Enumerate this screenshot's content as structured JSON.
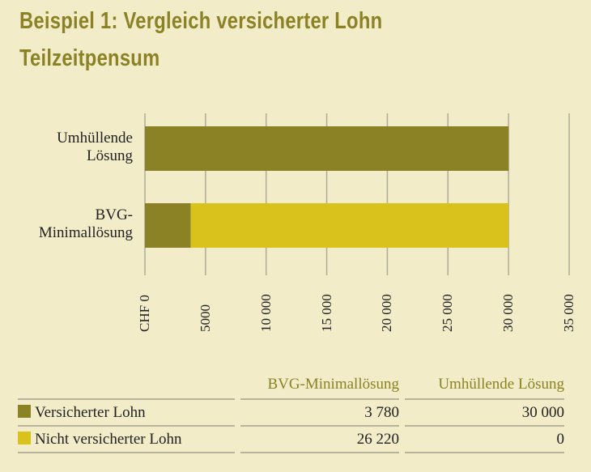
{
  "title_line1": "Beispiel 1: Vergleich versicherter Lohn",
  "title_line2": "Teilzeitpensum",
  "chart_data": {
    "type": "bar",
    "orientation": "horizontal",
    "stacked": true,
    "categories": [
      "Umhüllende Lösung",
      "BVG-Minimallösung"
    ],
    "category_lines": [
      [
        "Umhüllende",
        "Lösung"
      ],
      [
        "BVG-",
        "Minimallösung"
      ]
    ],
    "series": [
      {
        "name": "Versicherter Lohn",
        "values": [
          30000,
          3780
        ],
        "color": "#8a8224"
      },
      {
        "name": "Nicht versicherter Lohn",
        "values": [
          0,
          26220
        ],
        "color": "#d9c21b"
      }
    ],
    "xlim": [
      0,
      35000
    ],
    "ticks": [
      0,
      5000,
      10000,
      15000,
      20000,
      25000,
      30000,
      35000
    ],
    "tick_labels": [
      "CHF 0",
      "5000",
      "10 000",
      "15 000",
      "20 000",
      "25 000",
      "30 000",
      "35 000"
    ],
    "grid": true
  },
  "table": {
    "headers": [
      "",
      "BVG-Minimallösung",
      "Umhüllende Lösung"
    ],
    "rows": [
      {
        "label": "Versicherter Lohn",
        "color": "#8a8224",
        "bvg": "3 780",
        "umh": "30 000"
      },
      {
        "label": "Nicht versicherter Lohn",
        "color": "#d9c21b",
        "bvg": "26 220",
        "umh": "0"
      }
    ]
  }
}
